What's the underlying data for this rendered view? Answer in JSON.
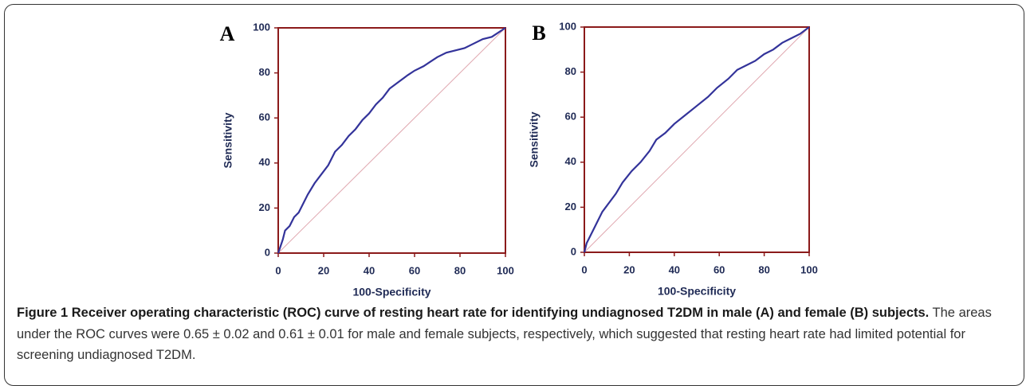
{
  "chart_data": [
    {
      "type": "line",
      "panel_label": "A",
      "xlabel": "100-Specificity",
      "ylabel": "Sensitivity",
      "x": [
        0,
        1,
        2,
        3,
        5,
        7,
        9,
        11,
        13,
        16,
        19,
        22,
        25,
        28,
        31,
        34,
        37,
        40,
        43,
        46,
        49,
        53,
        57,
        60,
        64,
        67,
        70,
        74,
        78,
        82,
        86,
        90,
        94,
        97,
        100
      ],
      "values": [
        0,
        3,
        6,
        10,
        12,
        16,
        18,
        22,
        26,
        31,
        35,
        39,
        45,
        48,
        52,
        55,
        59,
        62,
        66,
        69,
        73,
        76,
        79,
        81,
        83,
        85,
        87,
        89,
        90,
        91,
        93,
        95,
        96,
        98,
        100
      ],
      "color": "#33339a",
      "xlim": [
        0,
        100
      ],
      "ylim": [
        0,
        100
      ],
      "xticks": [
        0,
        20,
        40,
        60,
        80,
        100
      ],
      "yticks": [
        0,
        20,
        40,
        60,
        80,
        100
      ]
    },
    {
      "type": "line",
      "panel_label": "B",
      "xlabel": "100-Specificity",
      "ylabel": "Sensitivity",
      "x": [
        0,
        1,
        2,
        4,
        6,
        8,
        11,
        14,
        17,
        21,
        25,
        29,
        32,
        36,
        40,
        45,
        50,
        55,
        59,
        64,
        68,
        72,
        76,
        80,
        84,
        88,
        92,
        96,
        100
      ],
      "values": [
        0,
        4,
        6,
        10,
        14,
        18,
        22,
        26,
        31,
        36,
        40,
        45,
        50,
        53,
        57,
        61,
        65,
        69,
        73,
        77,
        81,
        83,
        85,
        88,
        90,
        93,
        95,
        97,
        100
      ],
      "color": "#33339a",
      "xlim": [
        0,
        100
      ],
      "ylim": [
        0,
        100
      ],
      "xticks": [
        0,
        20,
        40,
        60,
        80,
        100
      ],
      "yticks": [
        0,
        20,
        40,
        60,
        80,
        100
      ]
    }
  ],
  "caption": {
    "bold": "Figure 1 Receiver operating characteristic (ROC) curve of resting heart rate for identifying undiagnosed T2DM in male (A) and female (B) subjects.",
    "text": "The areas under the ROC curves were 0.65 ± 0.02 and 0.61 ± 0.01 for male and female subjects, respectively, which suggested that resting heart rate had limited potential for screening undiagnosed T2DM."
  }
}
